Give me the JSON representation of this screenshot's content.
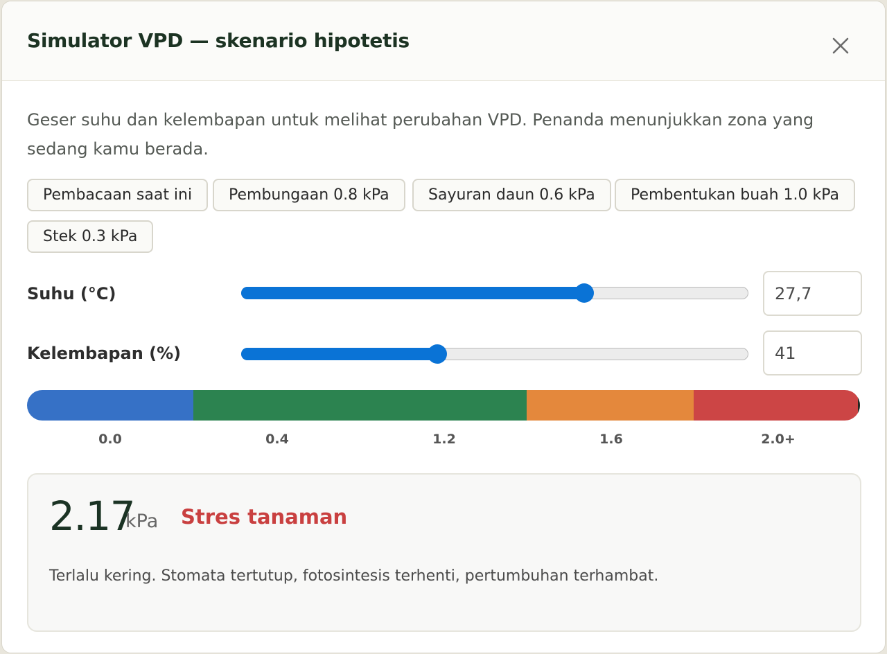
{
  "dialog": {
    "title": "Simulator VPD — skenario hipotetis",
    "description": "Geser suhu dan kelembapan untuk melihat perubahan VPD. Penanda menunjukkan zona yang sedang kamu berada."
  },
  "presets": [
    "Pembacaan saat ini",
    "Pembungaan 0.8 kPa",
    "Sayuran daun 0.6 kPa",
    "Pembentukan buah 1.0 kPa",
    "Stek 0.3 kPa"
  ],
  "sliders": {
    "temperature": {
      "label": "Suhu (°C)",
      "value_text": "27,7",
      "fraction": 0.676
    },
    "humidity": {
      "label": "Kelembapan (%)",
      "value_text": "41",
      "fraction": 0.386
    }
  },
  "scale": {
    "ticks": [
      "0.0",
      "0.4",
      "1.2",
      "1.6",
      "2.0+"
    ],
    "zone_colors": [
      "#3671c6",
      "#2c8350",
      "#e4883c",
      "#cc4545"
    ],
    "marker_fraction": 1.0
  },
  "result": {
    "value": "2.17",
    "unit": "kPa",
    "status": "Stres tanaman",
    "status_color": "#c94040",
    "description": "Terlalu kering. Stomata tertutup, fotosintesis terhenti, pertumbuhan terhambat."
  },
  "icons": {
    "close": "close-icon"
  }
}
